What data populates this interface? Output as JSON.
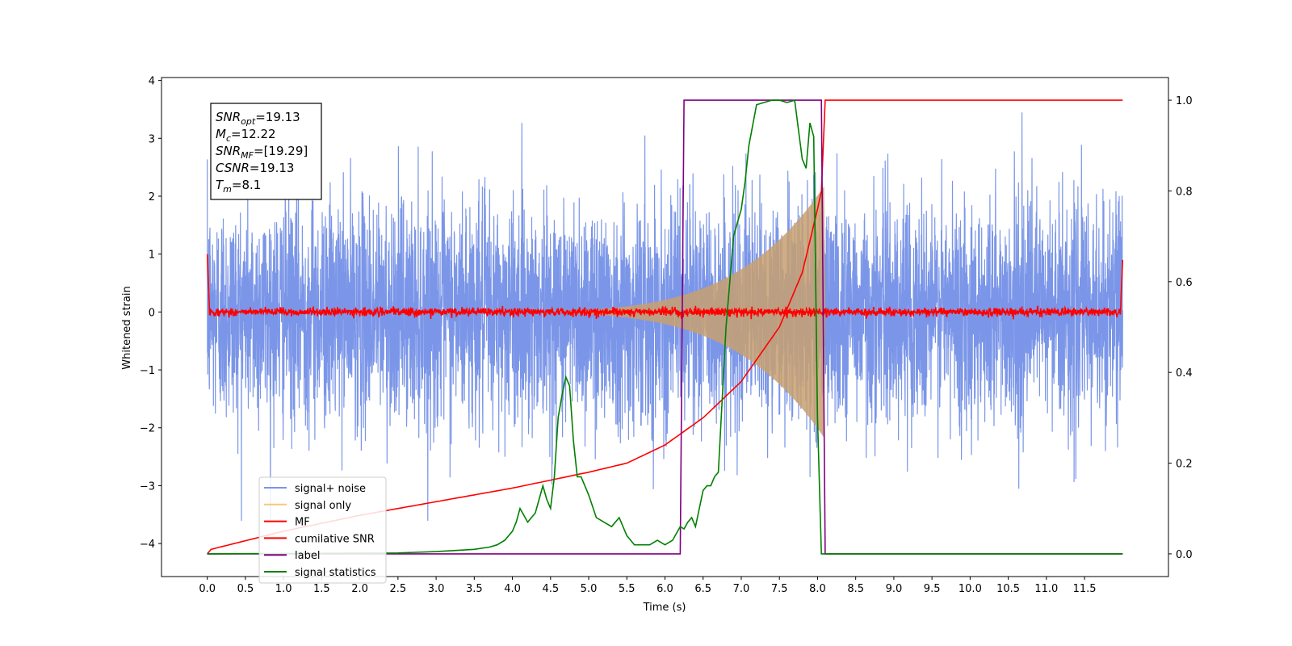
{
  "chart_data": {
    "type": "line",
    "title": "",
    "xlabel": "Time (s)",
    "ylabel": "Whitened strain",
    "xlim": [
      -0.6,
      12.6
    ],
    "ylim": [
      -4.57,
      4.05
    ],
    "y2lim": [
      -0.05,
      1.05
    ],
    "x_ticks": [
      "0.0",
      "0.5",
      "1.0",
      "1.5",
      "2.0",
      "2.5",
      "3.0",
      "3.5",
      "4.0",
      "4.5",
      "5.0",
      "5.5",
      "6.0",
      "6.5",
      "7.0",
      "7.5",
      "8.0",
      "8.5",
      "9.0",
      "9.5",
      "10.0",
      "10.5",
      "11.0",
      "11.5"
    ],
    "y_ticks": [
      "4",
      "3",
      "2",
      "1",
      "0",
      "−1",
      "−2",
      "−3",
      "−4"
    ],
    "y2_ticks": [
      "1.0",
      "0.8",
      "0.6",
      "0.4",
      "0.2",
      "0.0"
    ],
    "annotation": {
      "lines": [
        {
          "sym": "SNR",
          "sub": "opt",
          "val": "=19.13"
        },
        {
          "sym": "M",
          "sub": "c",
          "val": "=12.22"
        },
        {
          "sym": "SNR",
          "sub": "MF",
          "val": "=[19.29]"
        },
        {
          "sym": "CSNR",
          "sub": "",
          "val": "=19.13"
        },
        {
          "sym": "T",
          "sub": "m",
          "val": "=8.1"
        }
      ]
    },
    "legend": {
      "location": "lower-left",
      "entries": [
        {
          "label": "signal+ noise",
          "color": "#7b96e8"
        },
        {
          "label": "signal only",
          "color": "#f5c87a"
        },
        {
          "label": "MF",
          "color": "#ff0000"
        },
        {
          "label": "cumilative SNR",
          "color": "#ff0000"
        },
        {
          "label": "label",
          "color": "#800080"
        },
        {
          "label": "signal statistics",
          "color": "#008000"
        }
      ]
    },
    "series": [
      {
        "name": "signal+ noise",
        "axis": "left",
        "color": "#7b96e8",
        "x_range": [
          0,
          12
        ],
        "amplitude_std": 0.95,
        "peak_range": [
          -3.6,
          3.6
        ]
      },
      {
        "name": "signal only",
        "axis": "left",
        "color": "#c8a070",
        "chirp_start": 2.5,
        "chirp_end": 8.1,
        "peak_amplitude": 2.2
      },
      {
        "name": "MF",
        "axis": "left",
        "color": "#ff0000",
        "x_range": [
          0,
          12
        ],
        "baseline": 0.0,
        "edge_values": [
          1.0,
          0.9
        ]
      },
      {
        "name": "cumilative SNR",
        "axis": "right",
        "color": "#ff0000",
        "x": [
          0,
          0.05,
          1.0,
          2.0,
          3.0,
          4.0,
          5.0,
          5.5,
          6.0,
          6.5,
          7.0,
          7.5,
          7.8,
          8.0,
          8.05,
          8.1,
          12.0
        ],
        "y": [
          0.0,
          0.01,
          0.05,
          0.085,
          0.115,
          0.145,
          0.18,
          0.2,
          0.24,
          0.3,
          0.38,
          0.5,
          0.62,
          0.76,
          0.8,
          1.0,
          1.0
        ]
      },
      {
        "name": "label",
        "axis": "right",
        "color": "#800080",
        "x": [
          0,
          6.2,
          6.25,
          8.05,
          8.1,
          12.0
        ],
        "y": [
          0.0,
          0.0,
          1.0,
          1.0,
          0.0,
          0.0
        ]
      },
      {
        "name": "signal statistics",
        "axis": "right",
        "color": "#008000",
        "x": [
          0,
          2.5,
          3.0,
          3.3,
          3.5,
          3.7,
          3.8,
          3.9,
          4.0,
          4.05,
          4.1,
          4.2,
          4.3,
          4.35,
          4.4,
          4.45,
          4.5,
          4.55,
          4.6,
          4.65,
          4.7,
          4.75,
          4.8,
          4.85,
          4.9,
          5.0,
          5.1,
          5.2,
          5.3,
          5.4,
          5.5,
          5.6,
          5.7,
          5.8,
          5.9,
          6.0,
          6.1,
          6.2,
          6.25,
          6.3,
          6.35,
          6.4,
          6.5,
          6.55,
          6.6,
          6.65,
          6.7,
          6.8,
          6.85,
          6.9,
          6.95,
          7.0,
          7.05,
          7.1,
          7.2,
          7.3,
          7.4,
          7.5,
          7.6,
          7.7,
          7.8,
          7.85,
          7.9,
          7.95,
          8.0,
          8.05,
          8.1,
          12.0
        ],
        "y": [
          0.0,
          0.002,
          0.005,
          0.008,
          0.01,
          0.015,
          0.02,
          0.03,
          0.05,
          0.07,
          0.1,
          0.07,
          0.09,
          0.12,
          0.15,
          0.12,
          0.1,
          0.17,
          0.3,
          0.35,
          0.39,
          0.37,
          0.25,
          0.17,
          0.17,
          0.13,
          0.08,
          0.07,
          0.06,
          0.08,
          0.04,
          0.02,
          0.02,
          0.02,
          0.03,
          0.02,
          0.03,
          0.06,
          0.055,
          0.07,
          0.08,
          0.06,
          0.14,
          0.15,
          0.15,
          0.17,
          0.18,
          0.5,
          0.6,
          0.7,
          0.73,
          0.76,
          0.82,
          0.9,
          0.99,
          0.995,
          1.0,
          1.0,
          0.995,
          1.0,
          0.87,
          0.85,
          0.95,
          0.92,
          0.3,
          0.0,
          0.0,
          0.0
        ]
      }
    ]
  }
}
